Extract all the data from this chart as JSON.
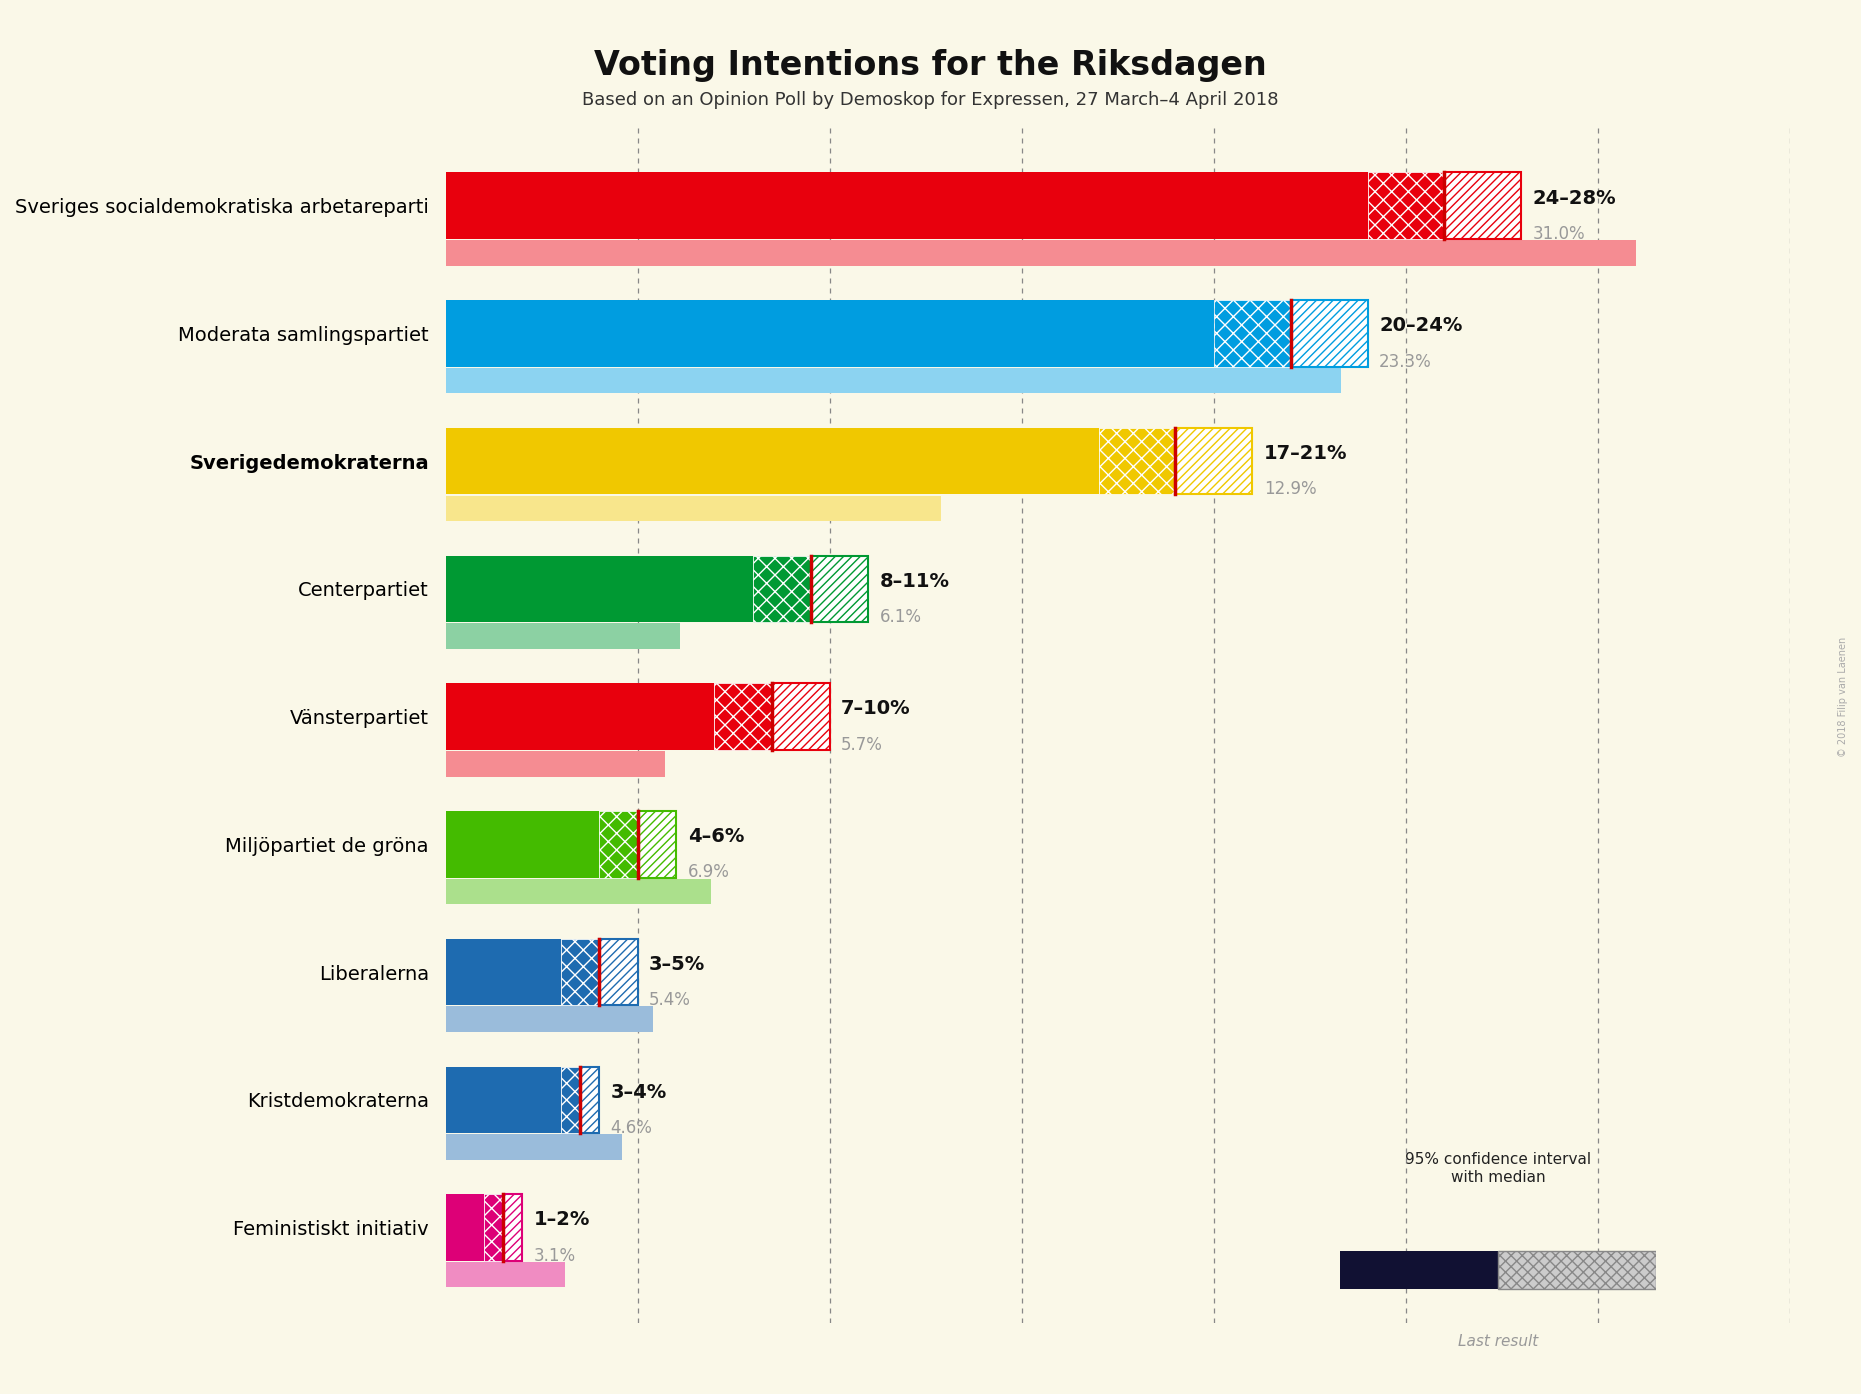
{
  "title": "Voting Intentions for the Riksdagen",
  "subtitle": "Based on an Opinion Poll by Demoskop for Expressen, 27 March–4 April 2018",
  "background_color": "#faf8e8",
  "parties": [
    {
      "name": "Sveriges socialdemokratiska arbetareparti",
      "ci_low": 24,
      "ci_high": 28,
      "median": 26,
      "last_result": 31.0,
      "color": "#e8000d",
      "label": "24–28%",
      "last_label": "31.0%",
      "bold": false
    },
    {
      "name": "Moderata samlingspartiet",
      "ci_low": 20,
      "ci_high": 24,
      "median": 22,
      "last_result": 23.3,
      "color": "#009de0",
      "label": "20–24%",
      "last_label": "23.3%",
      "bold": false
    },
    {
      "name": "Sverigedemokraterna",
      "ci_low": 17,
      "ci_high": 21,
      "median": 19,
      "last_result": 12.9,
      "color": "#f0c800",
      "label": "17–21%",
      "last_label": "12.9%",
      "bold": true
    },
    {
      "name": "Centerpartiet",
      "ci_low": 8,
      "ci_high": 11,
      "median": 9.5,
      "last_result": 6.1,
      "color": "#009933",
      "label": "8–11%",
      "last_label": "6.1%",
      "bold": false
    },
    {
      "name": "Vänsterpartiet",
      "ci_low": 7,
      "ci_high": 10,
      "median": 8.5,
      "last_result": 5.7,
      "color": "#e8000d",
      "label": "7–10%",
      "last_label": "5.7%",
      "bold": false
    },
    {
      "name": "Miljöpartiet de gröna",
      "ci_low": 4,
      "ci_high": 6,
      "median": 5,
      "last_result": 6.9,
      "color": "#44bb00",
      "label": "4–6%",
      "last_label": "6.9%",
      "bold": false
    },
    {
      "name": "Liberalerna",
      "ci_low": 3,
      "ci_high": 5,
      "median": 4,
      "last_result": 5.4,
      "color": "#1e6bb0",
      "label": "3–5%",
      "last_label": "5.4%",
      "bold": false
    },
    {
      "name": "Kristdemokraterna",
      "ci_low": 3,
      "ci_high": 4,
      "median": 3.5,
      "last_result": 4.6,
      "color": "#1e6bb0",
      "label": "3–4%",
      "last_label": "4.6%",
      "bold": false
    },
    {
      "name": "Feministiskt initiativ",
      "ci_low": 1,
      "ci_high": 2,
      "median": 1.5,
      "last_result": 3.1,
      "color": "#dd0077",
      "label": "1–2%",
      "last_label": "3.1%",
      "bold": false
    }
  ],
  "xlim": [
    0,
    35
  ],
  "grid_values": [
    5,
    10,
    15,
    20,
    25,
    30,
    35
  ],
  "legend_text": "95% confidence interval\nwith median",
  "legend_last": "Last result",
  "copyright": "© 2018 Filip van Laenen"
}
